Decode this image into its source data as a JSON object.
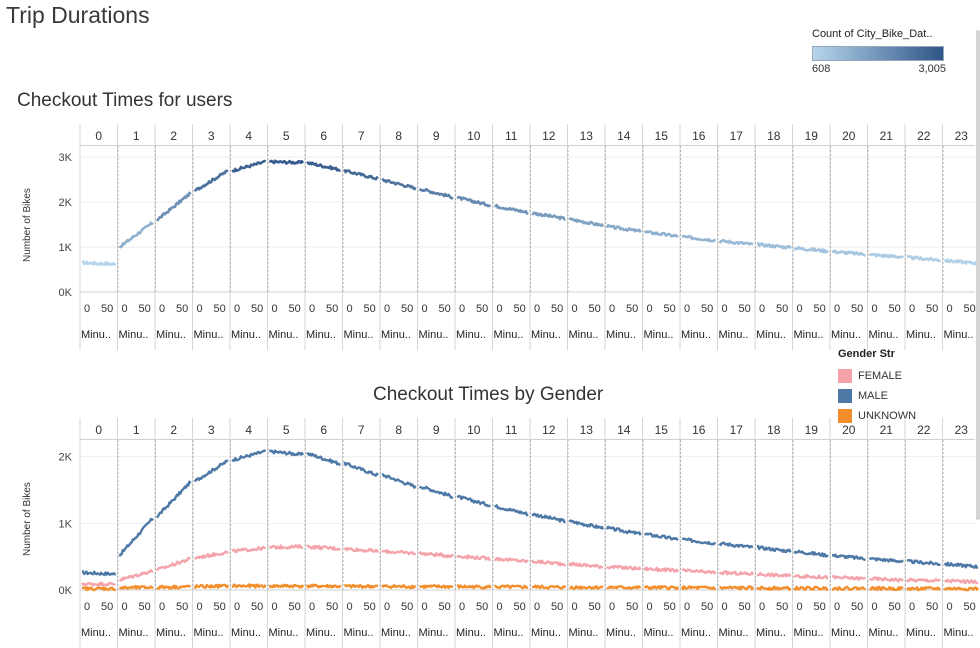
{
  "dashboard": {
    "title": "Trip Durations"
  },
  "legends": {
    "count": {
      "title": "Count of City_Bike_Dat..",
      "min_label": "608",
      "max_label": "3,005",
      "color_low": "#b6d5ec",
      "color_high": "#2e5587"
    },
    "gender": {
      "title": "Gender Str",
      "items": [
        {
          "label": "FEMALE",
          "color": "#f4a3ab"
        },
        {
          "label": "MALE",
          "color": "#4e79a7"
        },
        {
          "label": "UNKNOWN",
          "color": "#f28e2b"
        }
      ]
    }
  },
  "chart_data": [
    {
      "type": "line",
      "title": "Checkout Times for users",
      "ylabel": "Number of Bikes",
      "yticks": [
        "0K",
        "1K",
        "2K",
        "3K"
      ],
      "ylim": [
        0,
        3250
      ],
      "panel_headers": [
        "0",
        "1",
        "2",
        "3",
        "4",
        "5",
        "6",
        "7",
        "8",
        "9",
        "10",
        "11",
        "12",
        "13",
        "14",
        "15",
        "16",
        "17",
        "18",
        "19",
        "20",
        "21",
        "22",
        "23"
      ],
      "minute_tick_labels": [
        "0",
        "50"
      ],
      "minute_axis_label": "Minu..",
      "x_unit": "minutes within hour",
      "series": [
        {
          "values_per_hour_start": [
            650,
            1000,
            1600,
            2250,
            2700,
            2900,
            2880,
            2700,
            2500,
            2300,
            2100,
            1920,
            1760,
            1620,
            1460,
            1340,
            1230,
            1140,
            1060,
            980,
            900,
            830,
            770,
            700
          ],
          "values_per_hour_end": [
            620,
            1550,
            2200,
            2700,
            2900,
            2880,
            2720,
            2520,
            2310,
            2110,
            1930,
            1770,
            1630,
            1480,
            1350,
            1240,
            1150,
            1060,
            990,
            910,
            840,
            780,
            710,
            640
          ]
        }
      ],
      "color_range": [
        608,
        3005
      ],
      "grid": true
    },
    {
      "type": "line",
      "title": "Checkout Times by Gender",
      "ylabel": "Number of Bikes",
      "yticks": [
        "0K",
        "1K",
        "2K"
      ],
      "ylim": [
        0,
        2250
      ],
      "panel_headers": [
        "0",
        "1",
        "2",
        "3",
        "4",
        "5",
        "6",
        "7",
        "8",
        "9",
        "10",
        "11",
        "12",
        "13",
        "14",
        "15",
        "16",
        "17",
        "18",
        "19",
        "20",
        "21",
        "22",
        "23"
      ],
      "minute_tick_labels": [
        "0",
        "50"
      ],
      "minute_axis_label": "Minu..",
      "x_unit": "minutes within hour",
      "series": [
        {
          "name": "MALE",
          "values_per_hour_start": [
            260,
            520,
            1100,
            1630,
            1950,
            2080,
            2050,
            1900,
            1730,
            1560,
            1400,
            1260,
            1140,
            1030,
            930,
            840,
            760,
            700,
            640,
            580,
            520,
            470,
            430,
            390
          ],
          "values_per_hour_end": [
            240,
            1080,
            1620,
            1940,
            2080,
            2030,
            1890,
            1720,
            1550,
            1400,
            1270,
            1140,
            1030,
            930,
            840,
            760,
            700,
            640,
            580,
            520,
            470,
            430,
            390,
            350
          ]
        },
        {
          "name": "FEMALE",
          "values_per_hour_start": [
            90,
            150,
            300,
            480,
            580,
            640,
            650,
            620,
            580,
            550,
            510,
            470,
            430,
            390,
            350,
            320,
            290,
            260,
            240,
            210,
            190,
            170,
            150,
            140
          ],
          "values_per_hour_end": [
            90,
            290,
            470,
            570,
            630,
            650,
            620,
            580,
            550,
            510,
            470,
            430,
            390,
            350,
            320,
            290,
            260,
            240,
            210,
            190,
            170,
            150,
            140,
            120
          ]
        },
        {
          "name": "UNKNOWN",
          "values_per_hour_start": [
            20,
            30,
            40,
            50,
            60,
            60,
            60,
            55,
            55,
            50,
            50,
            45,
            45,
            40,
            40,
            35,
            35,
            30,
            30,
            25,
            25,
            25,
            20,
            20
          ],
          "values_per_hour_end": [
            20,
            40,
            50,
            60,
            60,
            60,
            55,
            55,
            50,
            50,
            45,
            45,
            40,
            40,
            35,
            35,
            30,
            30,
            25,
            25,
            25,
            20,
            20,
            20
          ]
        }
      ],
      "grid": true
    }
  ]
}
